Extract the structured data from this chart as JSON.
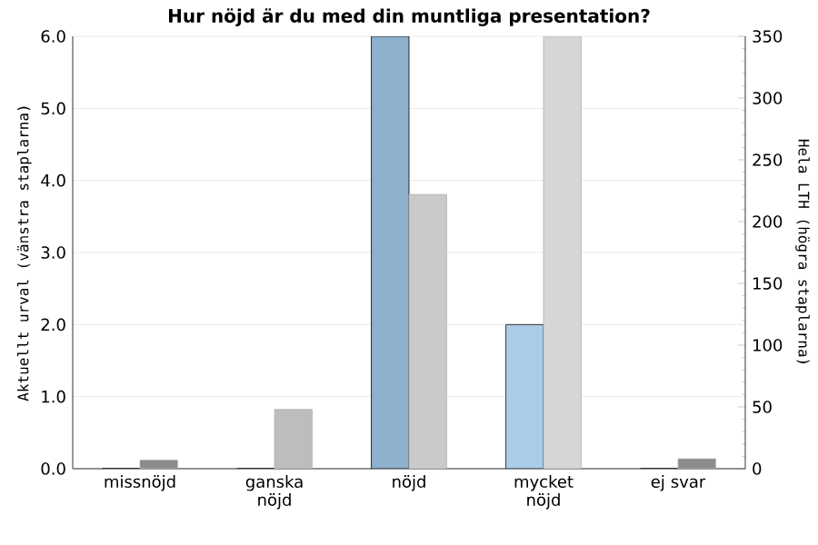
{
  "chart_data": {
    "type": "bar",
    "title": "Hur nöjd är du med din muntliga presentation?",
    "ylabel": "Aktuellt urval (vänstra staplarna)",
    "y2label": "Hela LTH (högra staplarna)",
    "categories": [
      "missnöjd",
      "ganska nöjd",
      "nöjd",
      "mycket nöjd",
      "ej svar"
    ],
    "series": [
      {
        "values": [
          0,
          0,
          6,
          2,
          0
        ],
        "colors": [
          "#8fb0cc",
          "#8fb0cc",
          "#8fb0cc",
          "#aacce6",
          "#8fb0cc"
        ]
      },
      {
        "values": [
          7,
          48,
          222,
          350,
          8
        ],
        "axis": "y2",
        "colors": [
          "#8c8c8c",
          "#bdbdbd",
          "#cacaca",
          "#d6d6d6",
          "#8c8c8c"
        ]
      }
    ],
    "ylim": [
      0,
      6
    ],
    "yticks": [
      {
        "value": 0,
        "label": "0.0"
      },
      {
        "value": 1,
        "label": "1.0"
      },
      {
        "value": 2,
        "label": "2.0"
      },
      {
        "value": 3,
        "label": "3.0"
      },
      {
        "value": 4,
        "label": "4.0"
      },
      {
        "value": 5,
        "label": "5.0"
      },
      {
        "value": 6,
        "label": "6.0"
      }
    ],
    "y2lim": [
      0,
      350
    ],
    "y2ticks": [
      0,
      50,
      100,
      150,
      200,
      250,
      300,
      350
    ],
    "grid": "y"
  }
}
